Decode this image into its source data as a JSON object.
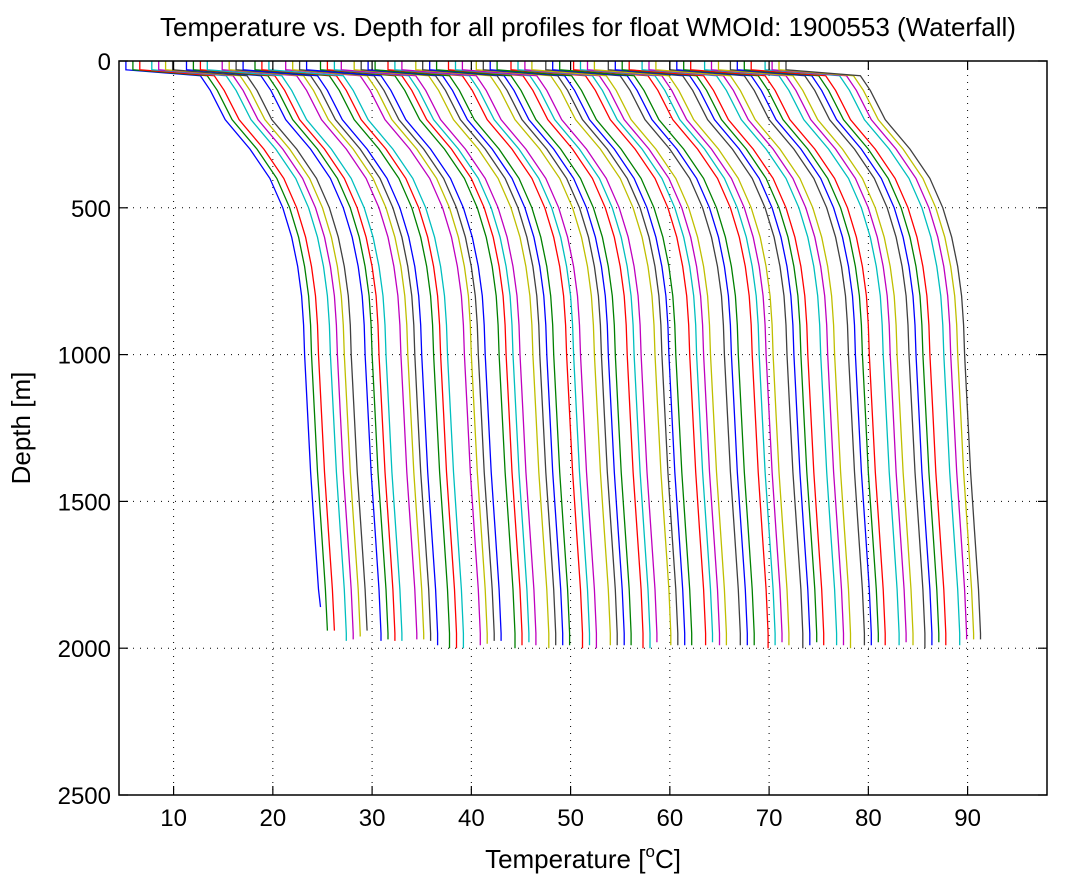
{
  "chart_data": {
    "type": "line",
    "title": "Temperature vs. Depth for all profiles for float WMOId: 1900553 (Waterfall)",
    "xlabel": "Temperature [",
    "xlabel_sup": "o",
    "xlabel_end": "C]",
    "ylabel": "Depth [m]",
    "xlim": [
      4.5,
      98
    ],
    "ylim": [
      0,
      2500
    ],
    "y_reversed": true,
    "grid": "dotted",
    "legend": "none",
    "x_ticks": [
      10,
      20,
      30,
      40,
      50,
      60,
      70,
      80,
      90
    ],
    "y_ticks": [
      0,
      500,
      1000,
      1500,
      2000,
      2500
    ],
    "x_tick_labels": [
      "10",
      "20",
      "30",
      "40",
      "50",
      "60",
      "70",
      "80",
      "90"
    ],
    "y_tick_labels": [
      "0",
      "500",
      "1000",
      "1500",
      "2000",
      "2500"
    ],
    "color_cycle": [
      "#0000ff",
      "#008000",
      "#ff0000",
      "#00bfbf",
      "#bf00bf",
      "#bfbf00",
      "#404040"
    ],
    "profile_depths": [
      0,
      30,
      50,
      100,
      200,
      300,
      400,
      500,
      600,
      700,
      800,
      900,
      1000,
      1200,
      1400,
      1600,
      1800,
      1950
    ],
    "profile_shape": [
      0,
      0,
      -7.5,
      -8.5,
      -10.0,
      -12.5,
      -14.5,
      -15.8,
      -16.7,
      -17.3,
      -17.7,
      -17.9,
      -18.0,
      -18.3,
      -18.6,
      -19.0,
      -19.4,
      -19.6
    ],
    "profiles": {
      "bottom_x": [
        5.2,
        5.9,
        6.6,
        7.8,
        8.5,
        9.2,
        9.9,
        11.3,
        12.0,
        12.7,
        13.4,
        14.9,
        15.6,
        16.3,
        17.0,
        18.2,
        18.9,
        19.6,
        21.3,
        22.0,
        22.7,
        23.4,
        24.8,
        25.5,
        26.2,
        26.9,
        28.2,
        28.9,
        29.6,
        30.3,
        31.6,
        32.3,
        33.0,
        34.4,
        35.1,
        35.8,
        36.5,
        37.7,
        38.4,
        39.1,
        40.5,
        41.2,
        41.9,
        42.6,
        44.0,
        44.7,
        45.4,
        46.1,
        47.5,
        48.2,
        48.9,
        50.3,
        51.0,
        51.7,
        52.4,
        53.8,
        54.5,
        55.2,
        55.9,
        57.2,
        57.9,
        58.6,
        60.0,
        60.7,
        61.4,
        62.1,
        63.5,
        64.2,
        64.9,
        66.1,
        66.8,
        67.5,
        68.2,
        69.6,
        70.3,
        71.0,
        71.7
      ],
      "bottom_depth": [
        1860,
        1940,
        1940,
        1975,
        1970,
        1960,
        1940,
        1975,
        1970,
        1975,
        1975,
        1970,
        1970,
        1975,
        1990,
        2000,
        2000,
        2000,
        1990,
        1985,
        1975,
        1975,
        2000,
        1990,
        1980,
        1990,
        2000,
        1990,
        1990,
        1990,
        2000,
        1990,
        2000,
        1990,
        1990,
        1990,
        1990,
        2000,
        2000,
        1980,
        1990,
        1990,
        1990,
        1990,
        1990,
        1980,
        1990,
        1990,
        1990,
        1990,
        1990,
        2000,
        1990,
        1980,
        1990,
        2000,
        1990,
        1980,
        1990,
        1990,
        1990,
        2000,
        1990,
        1990,
        1980,
        1990,
        1990,
        1980,
        1990,
        2000,
        1990,
        1980,
        1990,
        1990,
        1970,
        1970,
        1970
      ]
    }
  }
}
